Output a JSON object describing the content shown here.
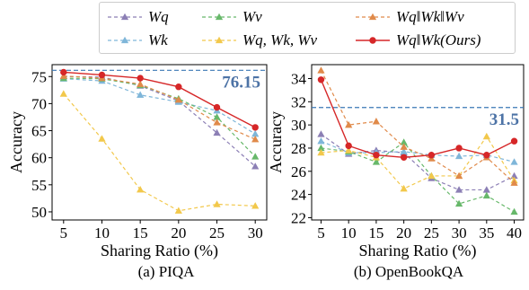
{
  "legend": [
    {
      "label": "Wq",
      "color": "#8c7fb5",
      "dash": "4,3"
    },
    {
      "label": "Wk",
      "color": "#7fb6d9",
      "dash": "4,3"
    },
    {
      "label": "Wv",
      "color": "#67b86a",
      "dash": "4,3"
    },
    {
      "label": "Wq, Wk, Wv",
      "color": "#f2c84b",
      "dash": "4,3"
    },
    {
      "label": "Wq‖Wk‖Wv",
      "color": "#e08a4a",
      "dash": "4,3"
    },
    {
      "label": "Wq‖Wk(Ours)",
      "color": "#d62728",
      "dash": ""
    }
  ],
  "captions": {
    "left": "(a) PIQA",
    "right": "(b) OpenBookQA"
  },
  "chart_data": [
    {
      "type": "line",
      "title": "(a) PIQA",
      "xlabel": "Sharing Ratio (%)",
      "ylabel": "Accuracy",
      "x": [
        5,
        10,
        15,
        20,
        25,
        30
      ],
      "xticks": [
        5,
        10,
        15,
        20,
        25,
        30
      ],
      "yticks": [
        50,
        55,
        60,
        65,
        70,
        75
      ],
      "xlim": [
        3.5,
        31.5
      ],
      "ylim": [
        48.5,
        77.2
      ],
      "reference_line": {
        "value": 76.15,
        "label": "76.15"
      },
      "series": [
        {
          "name": "Wq",
          "values": [
            75.0,
            74.9,
            73.3,
            70.5,
            64.6,
            58.4
          ]
        },
        {
          "name": "Wk",
          "values": [
            74.6,
            74.2,
            71.6,
            70.3,
            68.7,
            64.4
          ]
        },
        {
          "name": "Wv",
          "values": [
            74.7,
            74.6,
            73.4,
            70.9,
            67.5,
            60.2
          ]
        },
        {
          "name": "Wq, Wk, Wv",
          "values": [
            71.8,
            63.5,
            54.1,
            50.2,
            51.4,
            51.1
          ]
        },
        {
          "name": "Wq‖Wk‖Wv",
          "values": [
            75.1,
            74.7,
            73.6,
            70.7,
            66.5,
            63.4
          ]
        },
        {
          "name": "Wq‖Wk(Ours)",
          "values": [
            75.8,
            75.3,
            74.7,
            73.1,
            69.3,
            65.6
          ]
        }
      ]
    },
    {
      "type": "line",
      "title": "(b) OpenBookQA",
      "xlabel": "Sharing Ratio (%)",
      "ylabel": "Accuracy",
      "x": [
        5,
        10,
        15,
        20,
        25,
        30,
        35,
        40
      ],
      "xticks": [
        5,
        10,
        15,
        20,
        25,
        30,
        35,
        40
      ],
      "yticks": [
        22,
        24,
        26,
        28,
        30,
        32,
        34
      ],
      "xlim": [
        3.3,
        41.7
      ],
      "ylim": [
        21.8,
        35.2
      ],
      "reference_line": {
        "value": 31.5,
        "label": "31.5"
      },
      "series": [
        {
          "name": "Wq",
          "values": [
            29.2,
            27.5,
            27.8,
            27.6,
            25.4,
            24.4,
            24.4,
            25.6
          ]
        },
        {
          "name": "Wk",
          "values": [
            28.6,
            27.6,
            27.6,
            27.7,
            27.4,
            27.3,
            27.4,
            26.8
          ]
        },
        {
          "name": "Wv",
          "values": [
            28.0,
            27.7,
            26.8,
            28.5,
            25.6,
            23.2,
            23.9,
            22.5
          ]
        },
        {
          "name": "Wq, Wk, Wv",
          "values": [
            27.6,
            27.8,
            27.2,
            24.5,
            25.6,
            25.6,
            29.0,
            25.2
          ]
        },
        {
          "name": "Wq‖Wk‖Wv",
          "values": [
            34.7,
            30.0,
            30.3,
            28.1,
            27.1,
            25.6,
            27.2,
            25.0
          ]
        },
        {
          "name": "Wq‖Wk(Ours)",
          "values": [
            33.9,
            28.2,
            27.4,
            27.2,
            27.4,
            28.0,
            27.4,
            28.6
          ]
        }
      ]
    }
  ]
}
